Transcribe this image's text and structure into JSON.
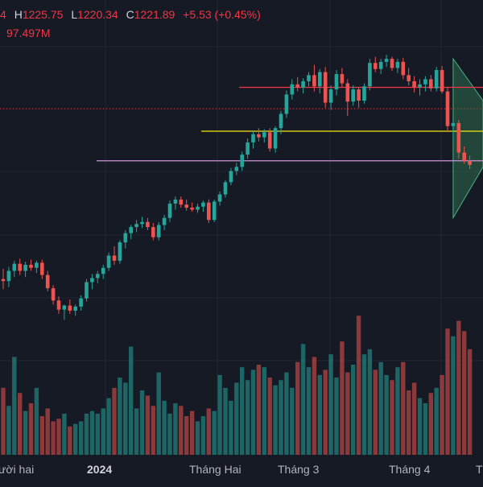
{
  "legend": {
    "open_tail": "4",
    "high_label": "H",
    "high_value": "1225.75",
    "low_label": "L",
    "low_value": "1220.34",
    "close_label": "C",
    "close_value": "1221.89",
    "change": "+5.53 (+0.45%)",
    "volume": "97.497M"
  },
  "colors": {
    "background": "#161a25",
    "grid": "#232734",
    "up": "#26a69a",
    "down": "#ef5350",
    "legend_text": "#f23645",
    "red_level": "#f23645",
    "yellow_level": "#f5e50a",
    "violet_level": "#ce93d8",
    "dotted_level": "#f23645",
    "pattern_fill": "#2e6b4c"
  },
  "x_axis": [
    {
      "label": "ười hai",
      "bold": false
    },
    {
      "label": "2024",
      "bold": true
    },
    {
      "label": "Tháng Hai",
      "bold": false
    },
    {
      "label": "Tháng 3",
      "bold": false
    },
    {
      "label": "Tháng 4",
      "bold": false
    },
    {
      "label": "T",
      "bold": false
    }
  ],
  "chart_data": {
    "type": "candlestick",
    "candles": [
      {
        "o": 1080,
        "h": 1090,
        "l": 1070,
        "c": 1078
      },
      {
        "o": 1078,
        "h": 1092,
        "l": 1072,
        "c": 1088
      },
      {
        "o": 1088,
        "h": 1098,
        "l": 1082,
        "c": 1095
      },
      {
        "o": 1095,
        "h": 1100,
        "l": 1084,
        "c": 1088
      },
      {
        "o": 1088,
        "h": 1097,
        "l": 1082,
        "c": 1094
      },
      {
        "o": 1094,
        "h": 1099,
        "l": 1088,
        "c": 1091
      },
      {
        "o": 1091,
        "h": 1098,
        "l": 1086,
        "c": 1096
      },
      {
        "o": 1096,
        "h": 1099,
        "l": 1080,
        "c": 1084
      },
      {
        "o": 1084,
        "h": 1088,
        "l": 1068,
        "c": 1071
      },
      {
        "o": 1071,
        "h": 1074,
        "l": 1055,
        "c": 1059
      },
      {
        "o": 1059,
        "h": 1063,
        "l": 1046,
        "c": 1050
      },
      {
        "o": 1050,
        "h": 1055,
        "l": 1040,
        "c": 1054
      },
      {
        "o": 1054,
        "h": 1060,
        "l": 1046,
        "c": 1049
      },
      {
        "o": 1049,
        "h": 1055,
        "l": 1044,
        "c": 1053
      },
      {
        "o": 1053,
        "h": 1064,
        "l": 1049,
        "c": 1061
      },
      {
        "o": 1061,
        "h": 1080,
        "l": 1058,
        "c": 1077
      },
      {
        "o": 1077,
        "h": 1085,
        "l": 1070,
        "c": 1081
      },
      {
        "o": 1081,
        "h": 1088,
        "l": 1076,
        "c": 1085
      },
      {
        "o": 1085,
        "h": 1094,
        "l": 1080,
        "c": 1091
      },
      {
        "o": 1091,
        "h": 1106,
        "l": 1088,
        "c": 1103
      },
      {
        "o": 1103,
        "h": 1112,
        "l": 1094,
        "c": 1098
      },
      {
        "o": 1098,
        "h": 1118,
        "l": 1095,
        "c": 1116
      },
      {
        "o": 1116,
        "h": 1128,
        "l": 1110,
        "c": 1125
      },
      {
        "o": 1125,
        "h": 1133,
        "l": 1119,
        "c": 1131
      },
      {
        "o": 1131,
        "h": 1138,
        "l": 1126,
        "c": 1134
      },
      {
        "o": 1134,
        "h": 1141,
        "l": 1130,
        "c": 1136
      },
      {
        "o": 1136,
        "h": 1140,
        "l": 1128,
        "c": 1131
      },
      {
        "o": 1131,
        "h": 1135,
        "l": 1118,
        "c": 1121
      },
      {
        "o": 1121,
        "h": 1136,
        "l": 1118,
        "c": 1133
      },
      {
        "o": 1133,
        "h": 1143,
        "l": 1128,
        "c": 1140
      },
      {
        "o": 1140,
        "h": 1157,
        "l": 1136,
        "c": 1154
      },
      {
        "o": 1154,
        "h": 1161,
        "l": 1148,
        "c": 1158
      },
      {
        "o": 1158,
        "h": 1161,
        "l": 1150,
        "c": 1153
      },
      {
        "o": 1153,
        "h": 1158,
        "l": 1147,
        "c": 1150
      },
      {
        "o": 1150,
        "h": 1155,
        "l": 1146,
        "c": 1148
      },
      {
        "o": 1148,
        "h": 1154,
        "l": 1145,
        "c": 1151
      },
      {
        "o": 1151,
        "h": 1157,
        "l": 1146,
        "c": 1155
      },
      {
        "o": 1155,
        "h": 1158,
        "l": 1135,
        "c": 1138
      },
      {
        "o": 1138,
        "h": 1158,
        "l": 1136,
        "c": 1156
      },
      {
        "o": 1156,
        "h": 1166,
        "l": 1152,
        "c": 1163
      },
      {
        "o": 1163,
        "h": 1177,
        "l": 1160,
        "c": 1175
      },
      {
        "o": 1175,
        "h": 1189,
        "l": 1172,
        "c": 1186
      },
      {
        "o": 1186,
        "h": 1194,
        "l": 1182,
        "c": 1190
      },
      {
        "o": 1190,
        "h": 1205,
        "l": 1186,
        "c": 1202
      },
      {
        "o": 1202,
        "h": 1218,
        "l": 1198,
        "c": 1214
      },
      {
        "o": 1214,
        "h": 1225,
        "l": 1208,
        "c": 1222
      },
      {
        "o": 1222,
        "h": 1228,
        "l": 1215,
        "c": 1219
      },
      {
        "o": 1219,
        "h": 1227,
        "l": 1214,
        "c": 1224
      },
      {
        "o": 1224,
        "h": 1228,
        "l": 1205,
        "c": 1208
      },
      {
        "o": 1208,
        "h": 1230,
        "l": 1204,
        "c": 1228
      },
      {
        "o": 1228,
        "h": 1245,
        "l": 1222,
        "c": 1242
      },
      {
        "o": 1242,
        "h": 1265,
        "l": 1238,
        "c": 1261
      },
      {
        "o": 1261,
        "h": 1276,
        "l": 1256,
        "c": 1271
      },
      {
        "o": 1271,
        "h": 1278,
        "l": 1264,
        "c": 1268
      },
      {
        "o": 1268,
        "h": 1277,
        "l": 1262,
        "c": 1274
      },
      {
        "o": 1274,
        "h": 1283,
        "l": 1269,
        "c": 1280
      },
      {
        "o": 1280,
        "h": 1290,
        "l": 1264,
        "c": 1269
      },
      {
        "o": 1269,
        "h": 1286,
        "l": 1262,
        "c": 1283
      },
      {
        "o": 1283,
        "h": 1288,
        "l": 1248,
        "c": 1253
      },
      {
        "o": 1253,
        "h": 1270,
        "l": 1246,
        "c": 1266
      },
      {
        "o": 1266,
        "h": 1285,
        "l": 1260,
        "c": 1281
      },
      {
        "o": 1281,
        "h": 1287,
        "l": 1268,
        "c": 1272
      },
      {
        "o": 1272,
        "h": 1276,
        "l": 1240,
        "c": 1254
      },
      {
        "o": 1254,
        "h": 1270,
        "l": 1250,
        "c": 1266
      },
      {
        "o": 1266,
        "h": 1268,
        "l": 1248,
        "c": 1255
      },
      {
        "o": 1255,
        "h": 1272,
        "l": 1252,
        "c": 1269
      },
      {
        "o": 1269,
        "h": 1296,
        "l": 1265,
        "c": 1292
      },
      {
        "o": 1292,
        "h": 1298,
        "l": 1283,
        "c": 1286
      },
      {
        "o": 1286,
        "h": 1296,
        "l": 1281,
        "c": 1293
      },
      {
        "o": 1293,
        "h": 1300,
        "l": 1288,
        "c": 1296
      },
      {
        "o": 1296,
        "h": 1298,
        "l": 1284,
        "c": 1287
      },
      {
        "o": 1287,
        "h": 1296,
        "l": 1282,
        "c": 1293
      },
      {
        "o": 1293,
        "h": 1297,
        "l": 1276,
        "c": 1280
      },
      {
        "o": 1280,
        "h": 1287,
        "l": 1270,
        "c": 1274
      },
      {
        "o": 1274,
        "h": 1279,
        "l": 1263,
        "c": 1268
      },
      {
        "o": 1268,
        "h": 1276,
        "l": 1260,
        "c": 1271
      },
      {
        "o": 1271,
        "h": 1279,
        "l": 1264,
        "c": 1276
      },
      {
        "o": 1276,
        "h": 1280,
        "l": 1264,
        "c": 1267
      },
      {
        "o": 1267,
        "h": 1288,
        "l": 1264,
        "c": 1285
      },
      {
        "o": 1285,
        "h": 1289,
        "l": 1262,
        "c": 1264
      },
      {
        "o": 1264,
        "h": 1268,
        "l": 1224,
        "c": 1230
      },
      {
        "o": 1230,
        "h": 1237,
        "l": 1216,
        "c": 1233
      },
      {
        "o": 1233,
        "h": 1236,
        "l": 1198,
        "c": 1204
      },
      {
        "o": 1204,
        "h": 1210,
        "l": 1193,
        "c": 1196
      },
      {
        "o": 1196,
        "h": 1201,
        "l": 1188,
        "c": 1192
      }
    ],
    "volume": [
      2.6,
      1.9,
      3.8,
      2.4,
      1.7,
      2.0,
      2.6,
      1.5,
      1.8,
      1.3,
      1.4,
      1.6,
      1.1,
      1.2,
      1.3,
      1.6,
      1.7,
      1.6,
      1.8,
      2.2,
      2.6,
      3.0,
      2.8,
      4.2,
      1.8,
      2.5,
      2.3,
      1.9,
      3.2,
      2.1,
      1.6,
      2.0,
      1.9,
      1.5,
      1.7,
      1.3,
      1.5,
      1.8,
      1.7,
      3.1,
      2.6,
      2.1,
      2.8,
      3.4,
      2.9,
      3.3,
      3.5,
      3.4,
      3.0,
      2.7,
      2.9,
      3.2,
      2.6,
      3.6,
      4.3,
      3.4,
      3.8,
      3.1,
      3.3,
      3.9,
      3.0,
      4.4,
      3.2,
      3.5,
      5.4,
      3.9,
      4.1,
      3.3,
      3.6,
      3.1,
      2.9,
      3.4,
      3.6,
      2.5,
      2.8,
      2.2,
      2.0,
      2.4,
      2.6,
      3.1,
      4.9,
      4.6,
      5.2,
      4.8,
      4.1
    ],
    "levels": [
      1268,
      1225,
      1196
    ],
    "dotted_level": 1247,
    "grid": true
  }
}
